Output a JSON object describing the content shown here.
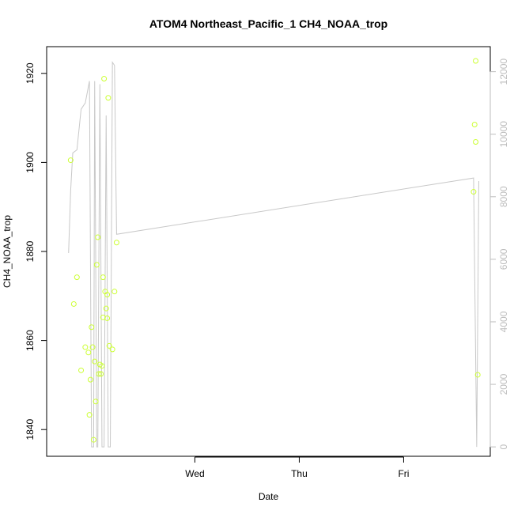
{
  "chart_data": {
    "type": "scatter",
    "title": "ATOM4 Northeast_Pacific_1 CH4_NOAA_trop",
    "xlabel": "Date",
    "ylabel": "CH4_NOAA_trop",
    "x_ticks": [
      "Wed",
      "Thu",
      "Fri"
    ],
    "y_ticks": [
      1840,
      1860,
      1880,
      1900,
      1920
    ],
    "y2_ticks": [
      0,
      2000,
      4000,
      6000,
      8000,
      10000,
      12000
    ],
    "xlim_days": [
      -1.42,
      2.83
    ],
    "ylim": [
      1834,
      1926
    ],
    "y2lim": [
      -300,
      12800
    ],
    "colors": {
      "points": "#ccff33",
      "line": "#c8c8c8",
      "axis": "#000000",
      "right_axis": "#bdbdbd"
    },
    "series": [
      {
        "type": "points",
        "axis": "left",
        "points": [
          [
            -1.19,
            1900.5
          ],
          [
            -1.16,
            1868.2
          ],
          [
            -1.13,
            1874.2
          ],
          [
            -1.09,
            1853.3
          ],
          [
            -1.05,
            1858.5
          ],
          [
            -1.02,
            1857.3
          ],
          [
            -1.01,
            1843.3
          ],
          [
            -1.0,
            1851.2
          ],
          [
            -0.99,
            1863.0
          ],
          [
            -0.98,
            1858.5
          ],
          [
            -0.97,
            1837.7
          ],
          [
            -0.96,
            1855.3
          ],
          [
            -0.95,
            1846.3
          ],
          [
            -0.94,
            1877.0
          ],
          [
            -0.93,
            1883.2
          ],
          [
            -0.92,
            1852.5
          ],
          [
            -0.91,
            1854.6
          ],
          [
            -0.9,
            1852.5
          ],
          [
            -0.89,
            1854.3
          ],
          [
            -0.88,
            1865.2
          ],
          [
            -0.88,
            1874.2
          ],
          [
            -0.87,
            1918.8
          ],
          [
            -0.86,
            1871.0
          ],
          [
            -0.85,
            1867.2
          ],
          [
            -0.84,
            1865.0
          ],
          [
            -0.84,
            1870.3
          ],
          [
            -0.83,
            1914.5
          ],
          [
            -0.82,
            1858.8
          ],
          [
            -0.79,
            1858.0
          ],
          [
            -0.77,
            1871.0
          ],
          [
            -0.75,
            1882.0
          ],
          [
            2.67,
            1893.4
          ],
          [
            2.68,
            1908.5
          ],
          [
            2.69,
            1922.8
          ],
          [
            2.69,
            1904.6
          ],
          [
            2.71,
            1852.3
          ]
        ]
      },
      {
        "type": "line",
        "axis": "right",
        "points": [
          [
            -1.21,
            6200
          ],
          [
            -1.19,
            8200
          ],
          [
            -1.17,
            9400
          ],
          [
            -1.13,
            9500
          ],
          [
            -1.09,
            10800
          ],
          [
            -1.05,
            11000
          ],
          [
            -1.01,
            11700
          ],
          [
            -0.99,
            0
          ],
          [
            -0.97,
            0
          ],
          [
            -0.96,
            11700
          ],
          [
            -0.94,
            0
          ],
          [
            -0.93,
            0
          ],
          [
            -0.91,
            11600
          ],
          [
            -0.89,
            0
          ],
          [
            -0.87,
            0
          ],
          [
            -0.85,
            10600
          ],
          [
            -0.83,
            0
          ],
          [
            -0.81,
            0
          ],
          [
            -0.79,
            12300
          ],
          [
            -0.77,
            12200
          ],
          [
            -0.75,
            6800
          ],
          [
            2.67,
            8600
          ],
          [
            2.7,
            0
          ],
          [
            2.72,
            8500
          ]
        ]
      }
    ]
  }
}
